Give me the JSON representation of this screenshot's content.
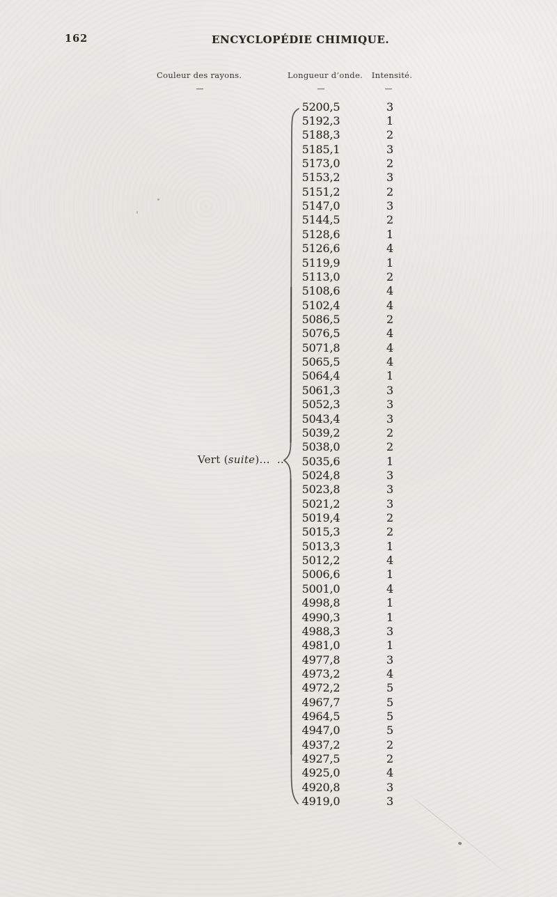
{
  "page": {
    "number": "162",
    "running_title": "ENCYCLOPÉDIE CHIMIQUE."
  },
  "table": {
    "columns": [
      "Couleur des rayons.",
      "Longueur d’onde.",
      "Intensité."
    ],
    "column_dash": "—",
    "group": {
      "prefix": "Vert (",
      "italic": "suite",
      "suffix": ")...  .."
    },
    "rows": [
      {
        "wavelength": "5200,5",
        "intensity": "3"
      },
      {
        "wavelength": "5192,3",
        "intensity": "1"
      },
      {
        "wavelength": "5188,3",
        "intensity": "2"
      },
      {
        "wavelength": "5185,1",
        "intensity": "3"
      },
      {
        "wavelength": "5173,0",
        "intensity": "2"
      },
      {
        "wavelength": "5153,2",
        "intensity": "3"
      },
      {
        "wavelength": "5151,2",
        "intensity": "2"
      },
      {
        "wavelength": "5147,0",
        "intensity": "3"
      },
      {
        "wavelength": "5144,5",
        "intensity": "2"
      },
      {
        "wavelength": "5128,6",
        "intensity": "1"
      },
      {
        "wavelength": "5126,6",
        "intensity": "4"
      },
      {
        "wavelength": "5119,9",
        "intensity": "1"
      },
      {
        "wavelength": "5113,0",
        "intensity": "2"
      },
      {
        "wavelength": "5108,6",
        "intensity": "4"
      },
      {
        "wavelength": "5102,4",
        "intensity": "4"
      },
      {
        "wavelength": "5086,5",
        "intensity": "2"
      },
      {
        "wavelength": "5076,5",
        "intensity": "4"
      },
      {
        "wavelength": "5071,8",
        "intensity": "4"
      },
      {
        "wavelength": "5065,5",
        "intensity": "4"
      },
      {
        "wavelength": "5064,4",
        "intensity": "1"
      },
      {
        "wavelength": "5061,3",
        "intensity": "3"
      },
      {
        "wavelength": "5052,3",
        "intensity": "3"
      },
      {
        "wavelength": "5043,4",
        "intensity": "3"
      },
      {
        "wavelength": "5039,2",
        "intensity": "2"
      },
      {
        "wavelength": "5038,0",
        "intensity": "2"
      },
      {
        "wavelength": "5035,6",
        "intensity": "1"
      },
      {
        "wavelength": "5024,8",
        "intensity": "3"
      },
      {
        "wavelength": "5023,8",
        "intensity": "3"
      },
      {
        "wavelength": "5021,2",
        "intensity": "3"
      },
      {
        "wavelength": "5019,4",
        "intensity": "2"
      },
      {
        "wavelength": "5015,3",
        "intensity": "2"
      },
      {
        "wavelength": "5013,3",
        "intensity": "1"
      },
      {
        "wavelength": "5012,2",
        "intensity": "4"
      },
      {
        "wavelength": "5006,6",
        "intensity": "1"
      },
      {
        "wavelength": "5001,0",
        "intensity": "4"
      },
      {
        "wavelength": "4998,8",
        "intensity": "1"
      },
      {
        "wavelength": "4990,3",
        "intensity": "1"
      },
      {
        "wavelength": "4988,3",
        "intensity": "3"
      },
      {
        "wavelength": "4981,0",
        "intensity": "1"
      },
      {
        "wavelength": "4977,8",
        "intensity": "3"
      },
      {
        "wavelength": "4973,2",
        "intensity": "4"
      },
      {
        "wavelength": "4972,2",
        "intensity": "5"
      },
      {
        "wavelength": "4967,7",
        "intensity": "5"
      },
      {
        "wavelength": "4964,5",
        "intensity": "5"
      },
      {
        "wavelength": "4947,0",
        "intensity": "5"
      },
      {
        "wavelength": "4937,2",
        "intensity": "2"
      },
      {
        "wavelength": "4927,5",
        "intensity": "2"
      },
      {
        "wavelength": "4925,0",
        "intensity": "4"
      },
      {
        "wavelength": "4920,8",
        "intensity": "3"
      },
      {
        "wavelength": "4919,0",
        "intensity": "3"
      }
    ]
  }
}
